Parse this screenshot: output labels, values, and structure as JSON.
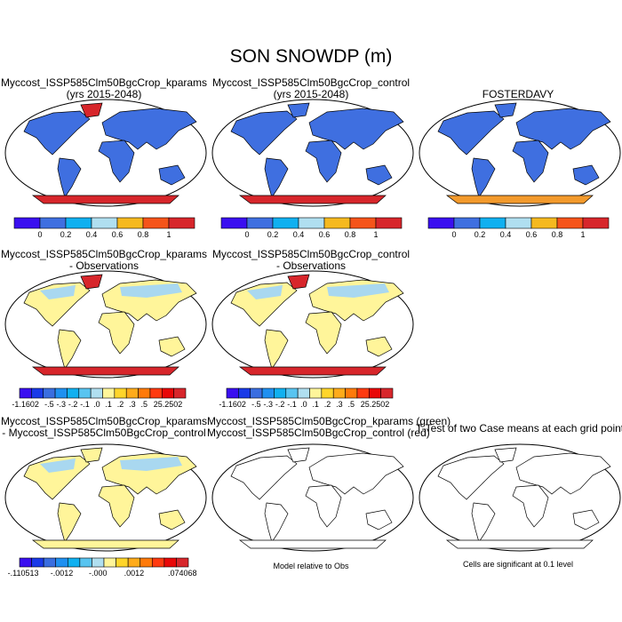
{
  "title": "SON SNOWDP (m)",
  "panels": [
    {
      "title1": "Myccost_ISSP585Clm50BgcCrop_kparams",
      "title2": "(yrs 2015-2048)",
      "land": "#3f6fe0",
      "greenland": "#d7262b",
      "antarctica": "#d7262b",
      "north_patch": ""
    },
    {
      "title1": "Myccost_ISSP585Clm50BgcCrop_control",
      "title2": "(yrs 2015-2048)",
      "land": "#3f6fe0",
      "greenland": "#3f6fe0",
      "antarctica": "#d7262b",
      "north_patch": ""
    },
    {
      "title1": "FOSTERDAVY",
      "title2": "",
      "land": "#3f6fe0",
      "greenland": "#3f6fe0",
      "antarctica": "#f39a2c",
      "north_patch": ""
    },
    {
      "title1": "Myccost_ISSP585Clm50BgcCrop_kparams",
      "title2": "- Observations",
      "land": "#fff59a",
      "greenland": "#d7262b",
      "antarctica": "#d7262b",
      "north_patch": "#a9d8f0"
    },
    {
      "title1": "Myccost_ISSP585Clm50BgcCrop_control",
      "title2": "- Observations",
      "land": "#fff59a",
      "greenland": "#d7262b",
      "antarctica": "#d7262b",
      "north_patch": "#a9d8f0"
    },
    {
      "title1": "Myccost_ISSP585Clm50BgcCrop_kparams",
      "title2": "- Myccost_ISSP585Clm50BgcCrop_control",
      "land": "#fff59a",
      "greenland": "#fff59a",
      "antarctica": "#fff59a",
      "north_patch": "#a9d8f0"
    },
    {
      "title1": "Myccost_ISSP585Clm50BgcCrop_kparams (green)",
      "title2": "Myccost_ISSP585Clm50BgcCrop_control (red)",
      "land": "#ffffff",
      "greenland": "#ffffff",
      "antarctica": "#ffffff",
      "north_patch": ""
    },
    {
      "title1": "T-Test of two Case means at each grid point",
      "title2": "",
      "land": "#ffffff",
      "greenland": "#ffffff",
      "antarctica": "#ffffff",
      "north_patch": ""
    }
  ],
  "colorbars": {
    "mean": {
      "colors": [
        "#3a0ff0",
        "#3f6fe0",
        "#10b0f0",
        "#b0dff0",
        "#f5b91f",
        "#f5541a",
        "#d7262b"
      ],
      "labels": [
        "0",
        "0.2",
        "0.4",
        "0.6",
        "0.8",
        "1"
      ]
    },
    "diff_obs": {
      "colors": [
        "#3a0ff0",
        "#1a3ae8",
        "#3a6ee0",
        "#1f90f0",
        "#10b0f0",
        "#58c4f0",
        "#b0dff0",
        "#fff59a",
        "#ffd52a",
        "#ffab1a",
        "#ff7a0a",
        "#ff3a10",
        "#e80808",
        "#d7262b"
      ],
      "labels": [
        "-1.1602",
        "-.5",
        "-.3",
        "-.2",
        "-.1",
        ".0",
        ".1",
        ".2",
        ".3",
        ".5",
        "25.2502"
      ]
    },
    "diff_case": {
      "colors": [
        "#3a0ff0",
        "#1a3ae8",
        "#3a6ee0",
        "#1f90f0",
        "#10b0f0",
        "#58c4f0",
        "#b0dff0",
        "#fff59a",
        "#ffd52a",
        "#ffab1a",
        "#ff7a0a",
        "#ff3a10",
        "#e80808",
        "#d7262b"
      ],
      "labels": [
        "-.110513",
        "-.0012",
        "-.000",
        ".0012",
        ".074068"
      ]
    }
  },
  "notes": {
    "model_obs": "Model relative to Obs",
    "significance": "Cells are significant at 0.1 level"
  }
}
